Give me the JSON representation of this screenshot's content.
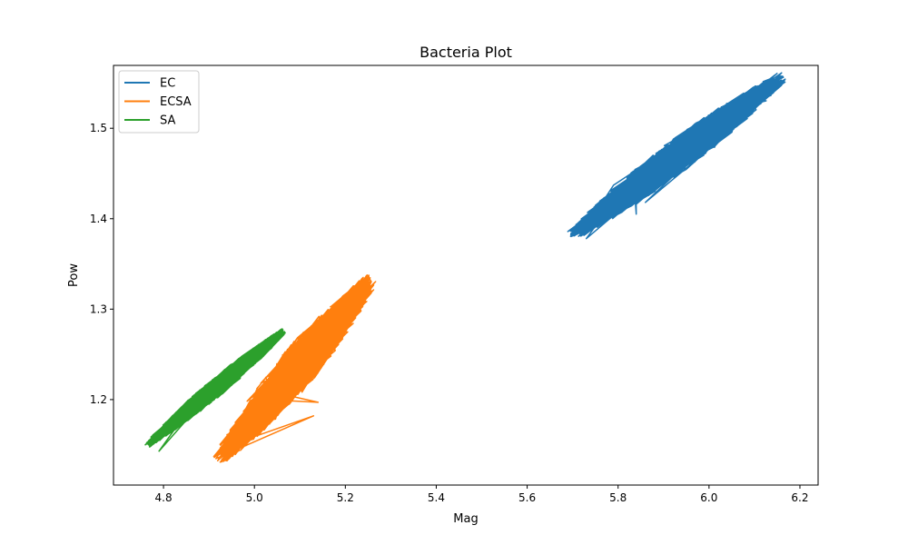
{
  "chart_data": {
    "type": "line",
    "title": "Bacteria Plot",
    "xlabel": "Mag",
    "ylabel": "Pow",
    "xlim": [
      4.69,
      6.24
    ],
    "ylim": [
      1.1055,
      1.5695
    ],
    "xticks": [
      4.8,
      5.0,
      5.2,
      5.4,
      5.6,
      5.8,
      6.0,
      6.2
    ],
    "yticks": [
      1.2,
      1.3,
      1.4,
      1.5
    ],
    "xtick_labels": [
      "4.8",
      "5.0",
      "5.2",
      "5.4",
      "5.6",
      "5.8",
      "6.0",
      "6.2"
    ],
    "ytick_labels": [
      "1.2",
      "1.3",
      "1.4",
      "1.5"
    ],
    "grid": false,
    "legend_position": "top-left",
    "series": [
      {
        "name": "EC",
        "color": "#1f77b4",
        "x_range": [
          5.69,
          6.17
        ],
        "y_range": [
          1.377,
          1.56
        ],
        "band_start": [
          5.695,
          1.38
        ],
        "band_end": [
          6.165,
          1.558
        ],
        "band_half_width": 0.018,
        "outliers": [
          [
            5.79,
            1.437
          ],
          [
            5.86,
            1.418
          ],
          [
            5.84,
            1.405
          ],
          [
            5.73,
            1.378
          ]
        ]
      },
      {
        "name": "ECSA",
        "color": "#ff7f0e",
        "x_range": [
          4.9,
          5.28
        ],
        "y_range": [
          1.127,
          1.34
        ],
        "band_start": [
          4.92,
          1.132
        ],
        "band_end": [
          5.26,
          1.334
        ],
        "band_half_width": 0.022,
        "outliers": [
          [
            5.13,
            1.182
          ],
          [
            5.14,
            1.197
          ],
          [
            5.08,
            1.225
          ]
        ]
      },
      {
        "name": "SA",
        "color": "#2ca02c",
        "x_range": [
          4.75,
          5.07
        ],
        "y_range": [
          1.142,
          1.28
        ],
        "band_start": [
          4.765,
          1.15
        ],
        "band_end": [
          5.065,
          1.276
        ],
        "band_half_width": 0.01,
        "outliers": [
          [
            4.76,
            1.15
          ],
          [
            4.79,
            1.143
          ]
        ]
      }
    ]
  }
}
